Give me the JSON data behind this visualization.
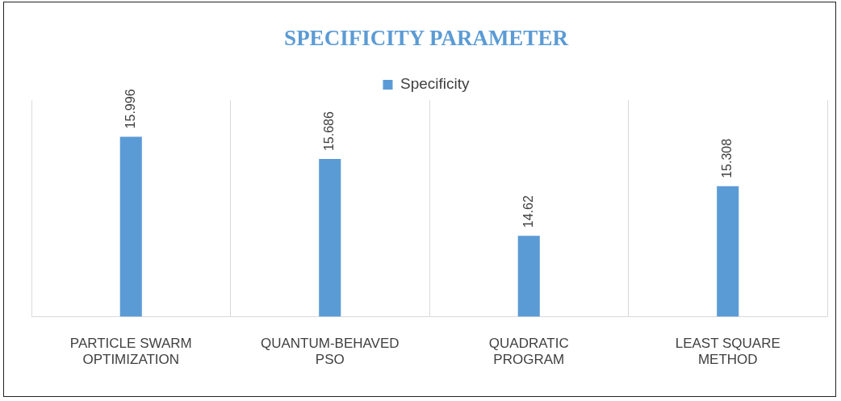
{
  "chart_data": {
    "type": "bar",
    "title": "SPECIFICITY PARAMETER",
    "categories": [
      "PARTICLE SWARM OPTIMIZATION",
      "QUANTUM-BEHAVED PSO",
      "QUADRATIC PROGRAM",
      "LEAST SQUARE METHOD"
    ],
    "series": [
      {
        "name": "Specificity",
        "color": "#5b9bd5",
        "values": [
          15.996,
          15.686,
          14.62,
          15.308
        ]
      }
    ],
    "ylim": [
      13.5,
      16.5
    ],
    "relative": false,
    "data_labels": true,
    "grid": "x",
    "legend": "top",
    "tick_labels": "x"
  }
}
